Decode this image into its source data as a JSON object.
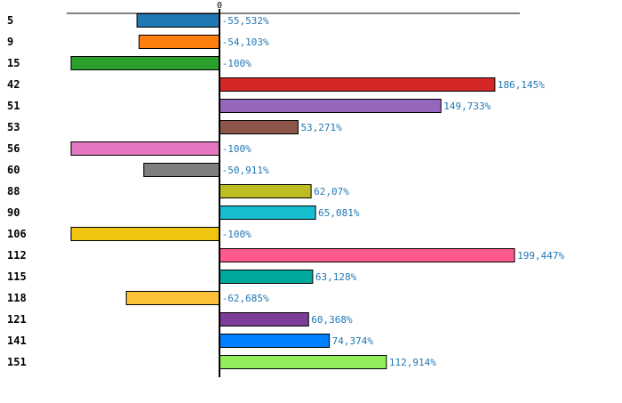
{
  "chart_data": {
    "type": "bar",
    "orientation": "horizontal",
    "title": "",
    "xlabel": "",
    "ylabel": "",
    "xlim": [
      -103,
      203
    ],
    "x_ticks": [
      "0"
    ],
    "grid": false,
    "categories": [
      "5",
      "9",
      "15",
      "42",
      "51",
      "53",
      "56",
      "60",
      "88",
      "90",
      "106",
      "112",
      "115",
      "118",
      "121",
      "141",
      "151"
    ],
    "values": [
      -55.532,
      -54.103,
      -100,
      186.145,
      149.733,
      53.271,
      -100,
      -50.911,
      62.07,
      65.081,
      -100,
      199.447,
      63.128,
      -62.685,
      60.368,
      74.374,
      112.914
    ],
    "labels": [
      "-55,532%",
      "-54,103%",
      "-100%",
      "186,145%",
      "149,733%",
      "53,271%",
      "-100%",
      "-50,911%",
      "62,07%",
      "65,081%",
      "-100%",
      "199,447%",
      "63,128%",
      "-62,685%",
      "60,368%",
      "74,374%",
      "112,914%"
    ],
    "colors": [
      "#1f77b4",
      "#ff7f0e",
      "#2ca02c",
      "#d62728",
      "#9467bd",
      "#8c564b",
      "#e377c2",
      "#7f7f7f",
      "#bcbd22",
      "#17becf",
      "#f1c40f",
      "#ff5a8c",
      "#00a99d",
      "#fdc13a",
      "#7d3c98",
      "#0080ff",
      "#90ee5a"
    ],
    "label_color": "#1f77b4"
  }
}
